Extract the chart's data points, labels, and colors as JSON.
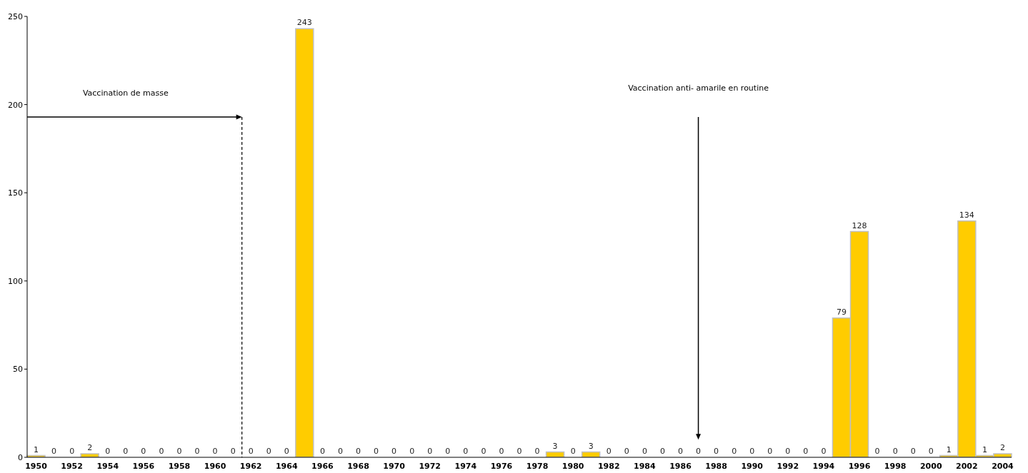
{
  "chart_data": {
    "type": "bar",
    "categories": [
      "1950",
      null,
      "1952",
      null,
      "1954",
      null,
      "1956",
      null,
      "1958",
      null,
      "1960",
      null,
      "1962",
      null,
      "1964",
      null,
      "1966",
      null,
      "1968",
      null,
      "1970",
      null,
      "1972",
      null,
      "1974",
      null,
      "1976",
      null,
      "1978",
      null,
      "1980",
      null,
      "1982",
      null,
      "1984",
      null,
      "1986",
      null,
      "1988",
      null,
      "1990",
      null,
      "1992",
      null,
      "1994",
      null,
      "1996",
      null,
      "1998",
      null,
      "2000",
      null,
      "2002",
      null,
      "2004"
    ],
    "values": [
      1,
      0,
      0,
      2,
      0,
      0,
      0,
      0,
      0,
      0,
      0,
      0,
      0,
      0,
      0,
      243,
      0,
      0,
      0,
      0,
      0,
      0,
      0,
      0,
      0,
      0,
      0,
      0,
      0,
      3,
      0,
      3,
      0,
      0,
      0,
      0,
      0,
      0,
      0,
      0,
      0,
      0,
      0,
      0,
      0,
      79,
      128,
      0,
      0,
      0,
      0,
      1,
      134,
      1,
      2
    ],
    "color": "#ffcc00",
    "ylim": [
      0,
      250
    ],
    "yticks": [
      0,
      50,
      100,
      150,
      200,
      250
    ],
    "data_labels": true,
    "annotations": [
      "Vaccination de masse",
      "Vaccination anti- amarile en routine"
    ]
  }
}
